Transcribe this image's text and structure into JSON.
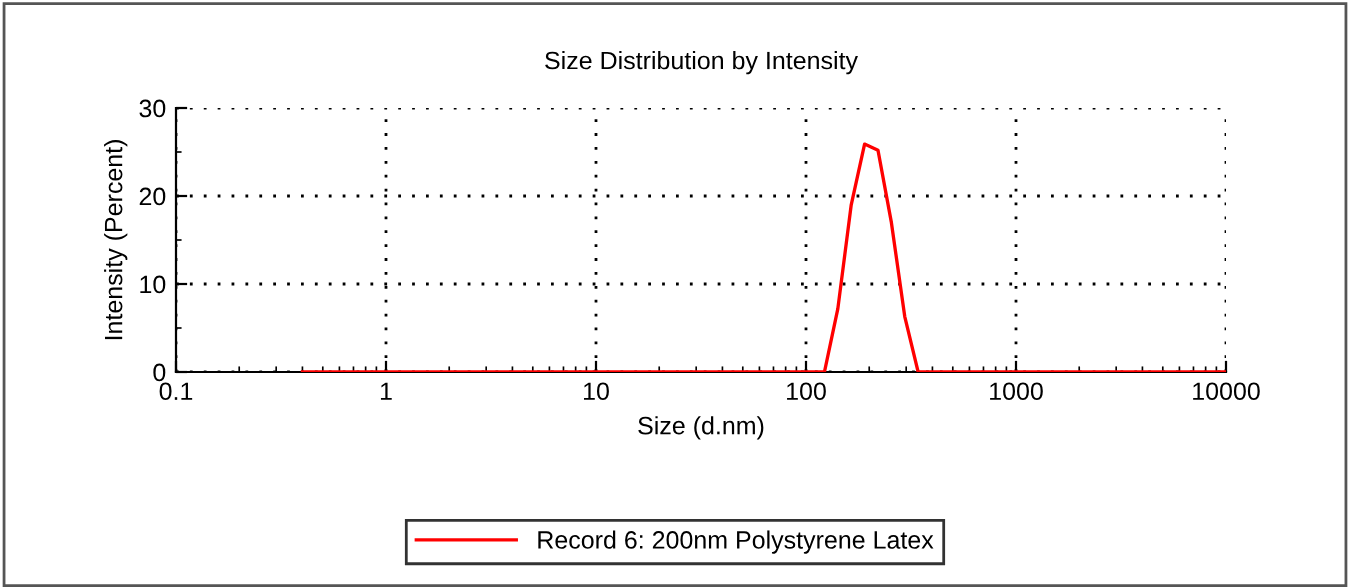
{
  "chart_data": {
    "type": "line",
    "title": "Size Distribution by Intensity",
    "xlabel": "Size (d.nm)",
    "ylabel": "Intensity (Percent)",
    "log": "x",
    "xlim": [
      0.1,
      10000
    ],
    "xticks": [
      0.1,
      1,
      10,
      100,
      1000,
      10000
    ],
    "ylim": [
      0,
      30
    ],
    "yticks": [
      0,
      10,
      20,
      30
    ],
    "grid": true,
    "legend": "bottom",
    "marker": "none",
    "line_style": "solid",
    "series": [
      {
        "name": "Record 6: 200nm Polystyrene Latex",
        "color": "#ff0000",
        "x": [
          0.4,
          122.4,
          141.8,
          164.2,
          190.1,
          220.2,
          255.0,
          295.3,
          342.0,
          10000
        ],
        "values": [
          0,
          0,
          7.2,
          19,
          25.9,
          25.2,
          17,
          6.3,
          0,
          0
        ]
      }
    ]
  }
}
